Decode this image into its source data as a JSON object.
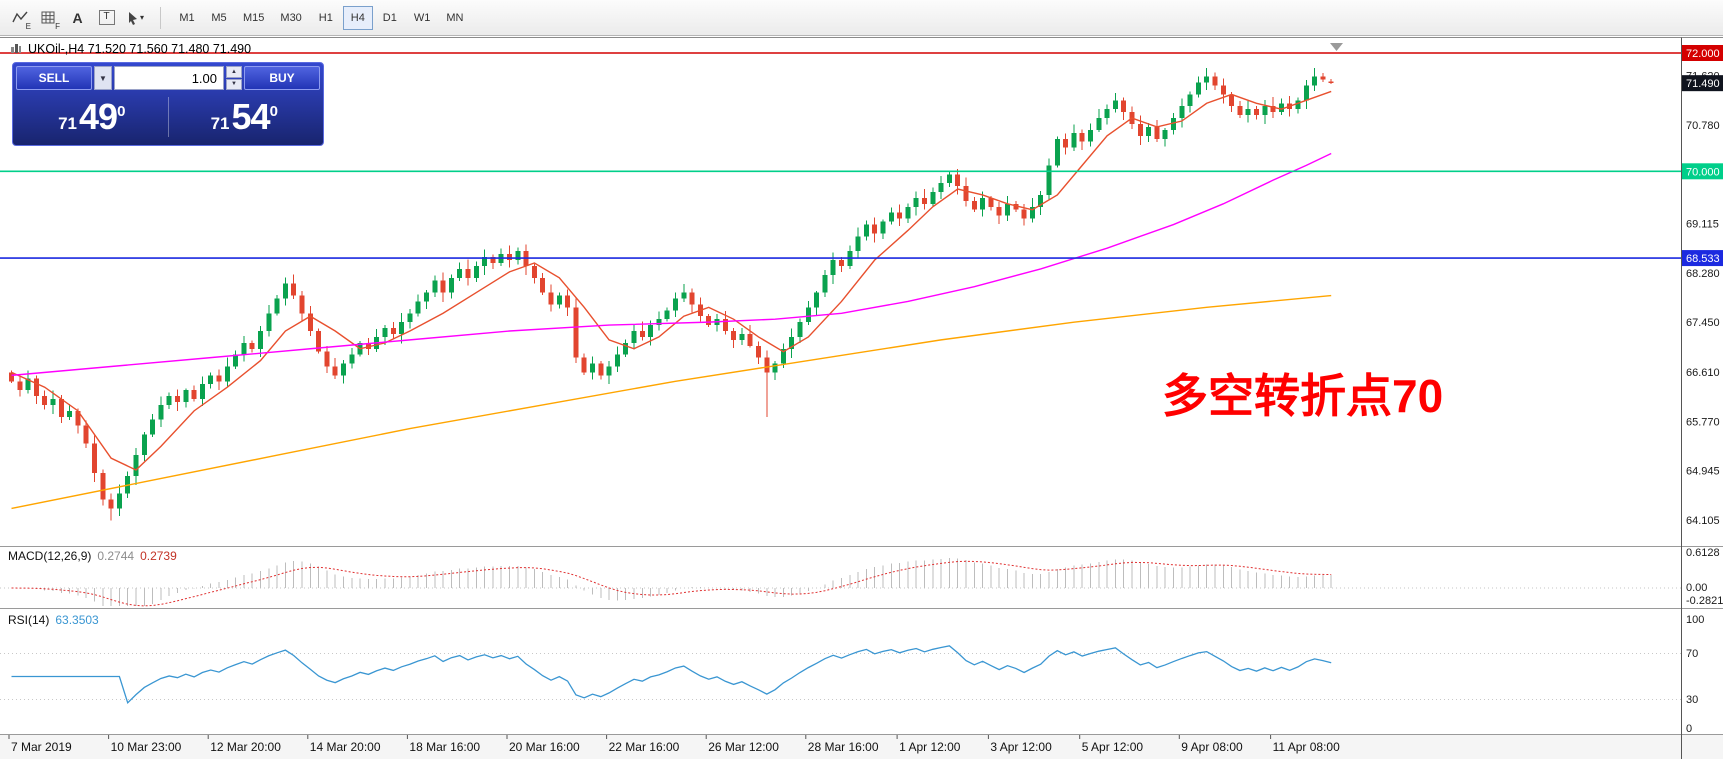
{
  "toolbar": {
    "timeframes": [
      "M1",
      "M5",
      "M15",
      "M30",
      "H1",
      "H4",
      "D1",
      "W1",
      "MN"
    ],
    "active_timeframe": "H4",
    "icons": {
      "e_sub": "E",
      "f_sub": "F",
      "a_label": "A",
      "t_label": "T"
    }
  },
  "trade_panel": {
    "sell_label": "SELL",
    "buy_label": "BUY",
    "volume": "1.00",
    "bid": {
      "prefix": "71",
      "big": "49",
      "sup": "0"
    },
    "ask": {
      "prefix": "71",
      "big": "54",
      "sup": "0"
    }
  },
  "chart_data": {
    "type": "candlestick",
    "symbol": "UKOil-",
    "period": "H4",
    "ohlc_title": "UKOil-,H4  71.520 71.560 71.480 71.490",
    "candles": {
      "up_color": "#0aa24e",
      "down_color": "#e2452f",
      "first_open": 66.6,
      "closes": [
        66.45,
        66.3,
        66.5,
        66.2,
        66.05,
        66.15,
        65.85,
        65.95,
        65.7,
        65.4,
        64.9,
        64.45,
        64.3,
        64.55,
        64.85,
        65.2,
        65.55,
        65.8,
        66.05,
        66.2,
        66.1,
        66.3,
        66.15,
        66.4,
        66.55,
        66.45,
        66.7,
        66.9,
        67.1,
        67.0,
        67.3,
        67.6,
        67.85,
        68.1,
        67.9,
        67.6,
        67.3,
        66.95,
        66.7,
        66.55,
        66.75,
        66.9,
        67.1,
        67.0,
        67.2,
        67.35,
        67.25,
        67.45,
        67.6,
        67.8,
        67.95,
        68.15,
        67.95,
        68.2,
        68.35,
        68.2,
        68.4,
        68.55,
        68.45,
        68.6,
        68.5,
        68.65,
        68.4,
        68.2,
        67.95,
        67.75,
        67.9,
        67.7,
        66.85,
        66.6,
        66.75,
        66.55,
        66.7,
        66.9,
        67.1,
        67.3,
        67.2,
        67.4,
        67.5,
        67.65,
        67.85,
        67.95,
        67.75,
        67.55,
        67.4,
        67.5,
        67.3,
        67.15,
        67.25,
        67.05,
        66.85,
        66.6,
        66.75,
        67.0,
        67.2,
        67.45,
        67.7,
        67.95,
        68.25,
        68.5,
        68.4,
        68.65,
        68.9,
        69.1,
        68.95,
        69.15,
        69.3,
        69.2,
        69.4,
        69.55,
        69.45,
        69.65,
        69.8,
        69.95,
        69.75,
        69.5,
        69.35,
        69.55,
        69.4,
        69.25,
        69.45,
        69.35,
        69.2,
        69.4,
        69.6,
        70.1,
        70.55,
        70.4,
        70.65,
        70.5,
        70.7,
        70.9,
        71.05,
        71.2,
        71.0,
        70.8,
        70.6,
        70.75,
        70.55,
        70.7,
        70.9,
        71.1,
        71.3,
        71.5,
        71.6,
        71.45,
        71.3,
        71.1,
        70.95,
        71.05,
        70.95,
        71.1,
        71.0,
        71.15,
        71.05,
        71.2,
        71.45,
        71.6,
        71.55,
        71.49
      ],
      "low_overrides": {
        "12": 64.1,
        "91": 65.85
      },
      "last_ohlc": [
        71.52,
        71.56,
        71.48,
        71.49
      ]
    },
    "y_labels": [
      "71.620",
      "70.780",
      "69.115",
      "68.280",
      "67.450",
      "66.610",
      "65.770",
      "64.945",
      "64.105"
    ],
    "hlines": [
      {
        "price": 72.0,
        "color": "#d40000",
        "tag": "72.000"
      },
      {
        "price": 70.0,
        "color": "#00cf8a",
        "tag": "70.000"
      },
      {
        "price": 68.533,
        "color": "#1c2ae0",
        "tag": "68.533"
      }
    ],
    "current_price_tag": {
      "value": "71.490",
      "bg": "#10141e"
    },
    "mas": [
      {
        "name": "ma-fast-line",
        "color": "#e8502e",
        "points": [
          [
            0,
            66.6
          ],
          [
            4,
            66.35
          ],
          [
            8,
            65.95
          ],
          [
            12,
            65.15
          ],
          [
            15,
            64.95
          ],
          [
            18,
            65.35
          ],
          [
            22,
            65.95
          ],
          [
            26,
            66.35
          ],
          [
            30,
            66.8
          ],
          [
            33,
            67.3
          ],
          [
            36,
            67.55
          ],
          [
            39,
            67.3
          ],
          [
            42,
            67.0
          ],
          [
            45,
            67.1
          ],
          [
            48,
            67.3
          ],
          [
            52,
            67.6
          ],
          [
            56,
            67.95
          ],
          [
            60,
            68.3
          ],
          [
            63,
            68.45
          ],
          [
            66,
            68.2
          ],
          [
            69,
            67.7
          ],
          [
            72,
            67.15
          ],
          [
            75,
            67.0
          ],
          [
            78,
            67.2
          ],
          [
            81,
            67.55
          ],
          [
            84,
            67.7
          ],
          [
            87,
            67.5
          ],
          [
            90,
            67.2
          ],
          [
            93,
            66.95
          ],
          [
            96,
            67.2
          ],
          [
            100,
            67.8
          ],
          [
            104,
            68.5
          ],
          [
            108,
            69.0
          ],
          [
            111,
            69.4
          ],
          [
            114,
            69.7
          ],
          [
            117,
            69.6
          ],
          [
            120,
            69.45
          ],
          [
            123,
            69.35
          ],
          [
            126,
            69.6
          ],
          [
            129,
            70.1
          ],
          [
            132,
            70.6
          ],
          [
            135,
            70.9
          ],
          [
            138,
            70.75
          ],
          [
            141,
            70.85
          ],
          [
            144,
            71.15
          ],
          [
            147,
            71.3
          ],
          [
            150,
            71.15
          ],
          [
            153,
            71.05
          ],
          [
            156,
            71.2
          ],
          [
            159,
            71.35
          ]
        ]
      },
      {
        "name": "ma-mid-line",
        "color": "#ff00ff",
        "points": [
          [
            0,
            66.55
          ],
          [
            12,
            66.7
          ],
          [
            24,
            66.85
          ],
          [
            36,
            67.0
          ],
          [
            48,
            67.15
          ],
          [
            60,
            67.3
          ],
          [
            72,
            67.4
          ],
          [
            84,
            67.45
          ],
          [
            92,
            67.5
          ],
          [
            100,
            67.6
          ],
          [
            108,
            67.8
          ],
          [
            116,
            68.05
          ],
          [
            124,
            68.35
          ],
          [
            132,
            68.7
          ],
          [
            140,
            69.1
          ],
          [
            146,
            69.45
          ],
          [
            152,
            69.85
          ],
          [
            156,
            70.1
          ],
          [
            159,
            70.3
          ]
        ]
      },
      {
        "name": "ma-slow-line",
        "color": "#ffa500",
        "points": [
          [
            0,
            64.3
          ],
          [
            16,
            64.75
          ],
          [
            32,
            65.2
          ],
          [
            48,
            65.65
          ],
          [
            64,
            66.05
          ],
          [
            80,
            66.45
          ],
          [
            96,
            66.8
          ],
          [
            112,
            67.15
          ],
          [
            128,
            67.45
          ],
          [
            144,
            67.7
          ],
          [
            159,
            67.9
          ]
        ]
      }
    ],
    "x_ticks": [
      {
        "i": 0,
        "label": "7 Mar 2019"
      },
      {
        "i": 12,
        "label": "10 Mar 23:00"
      },
      {
        "i": 24,
        "label": "12 Mar 20:00"
      },
      {
        "i": 36,
        "label": "14 Mar 20:00"
      },
      {
        "i": 48,
        "label": "18 Mar 16:00"
      },
      {
        "i": 60,
        "label": "20 Mar 16:00"
      },
      {
        "i": 72,
        "label": "22 Mar 16:00"
      },
      {
        "i": 84,
        "label": "26 Mar 12:00"
      },
      {
        "i": 96,
        "label": "28 Mar 16:00"
      },
      {
        "i": 107,
        "label": "1 Apr 12:00"
      },
      {
        "i": 118,
        "label": "3 Apr 12:00"
      },
      {
        "i": 129,
        "label": "5 Apr 12:00"
      },
      {
        "i": 141,
        "label": "9 Apr 08:00"
      },
      {
        "i": 152,
        "label": "11 Apr 08:00"
      }
    ],
    "macd": {
      "label": "MACD(12,26,9)",
      "value_main": "0.2744",
      "value_signal": "0.2739",
      "axis": [
        "0.6128",
        "0.00",
        "-0.2821"
      ],
      "hist_color": "#bdbdbd",
      "signal_color": "#e03030"
    },
    "rsi": {
      "label": "RSI(14)",
      "value": "63.3503",
      "axis": [
        "100",
        "70",
        "30",
        "0"
      ],
      "levels": [
        70,
        30
      ],
      "color": "#3a96d2"
    },
    "annotation": {
      "text": "多空转折点70",
      "color": "#ff0000"
    }
  }
}
